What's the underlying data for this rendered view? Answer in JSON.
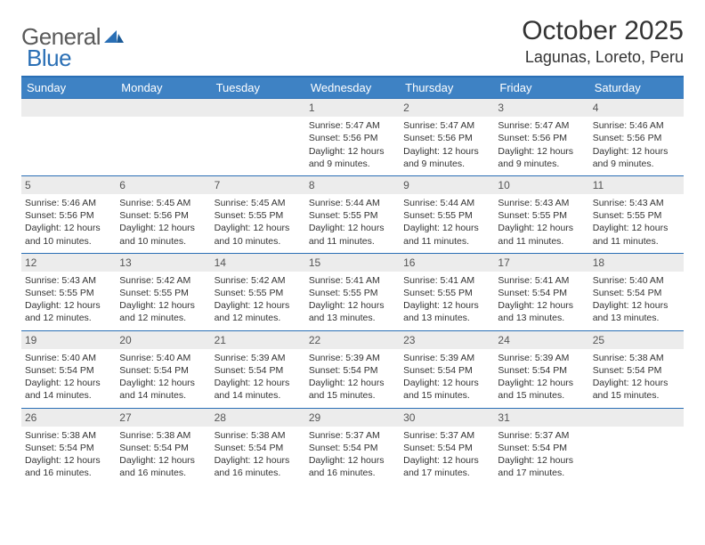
{
  "logo": {
    "text1": "General",
    "text2": "Blue"
  },
  "title": "October 2025",
  "location": "Lagunas, Loreto, Peru",
  "header_bg": "#3e82c4",
  "header_text_color": "#ffffff",
  "border_color": "#2a6fb5",
  "daynum_bg": "#ececec",
  "font_size_body": 10.5,
  "days": [
    "Sunday",
    "Monday",
    "Tuesday",
    "Wednesday",
    "Thursday",
    "Friday",
    "Saturday"
  ],
  "weeks": [
    [
      null,
      null,
      null,
      {
        "n": "1",
        "sr": "5:47 AM",
        "ss": "5:56 PM",
        "dl": "12 hours and 9 minutes."
      },
      {
        "n": "2",
        "sr": "5:47 AM",
        "ss": "5:56 PM",
        "dl": "12 hours and 9 minutes."
      },
      {
        "n": "3",
        "sr": "5:47 AM",
        "ss": "5:56 PM",
        "dl": "12 hours and 9 minutes."
      },
      {
        "n": "4",
        "sr": "5:46 AM",
        "ss": "5:56 PM",
        "dl": "12 hours and 9 minutes."
      }
    ],
    [
      {
        "n": "5",
        "sr": "5:46 AM",
        "ss": "5:56 PM",
        "dl": "12 hours and 10 minutes."
      },
      {
        "n": "6",
        "sr": "5:45 AM",
        "ss": "5:56 PM",
        "dl": "12 hours and 10 minutes."
      },
      {
        "n": "7",
        "sr": "5:45 AM",
        "ss": "5:55 PM",
        "dl": "12 hours and 10 minutes."
      },
      {
        "n": "8",
        "sr": "5:44 AM",
        "ss": "5:55 PM",
        "dl": "12 hours and 11 minutes."
      },
      {
        "n": "9",
        "sr": "5:44 AM",
        "ss": "5:55 PM",
        "dl": "12 hours and 11 minutes."
      },
      {
        "n": "10",
        "sr": "5:43 AM",
        "ss": "5:55 PM",
        "dl": "12 hours and 11 minutes."
      },
      {
        "n": "11",
        "sr": "5:43 AM",
        "ss": "5:55 PM",
        "dl": "12 hours and 11 minutes."
      }
    ],
    [
      {
        "n": "12",
        "sr": "5:43 AM",
        "ss": "5:55 PM",
        "dl": "12 hours and 12 minutes."
      },
      {
        "n": "13",
        "sr": "5:42 AM",
        "ss": "5:55 PM",
        "dl": "12 hours and 12 minutes."
      },
      {
        "n": "14",
        "sr": "5:42 AM",
        "ss": "5:55 PM",
        "dl": "12 hours and 12 minutes."
      },
      {
        "n": "15",
        "sr": "5:41 AM",
        "ss": "5:55 PM",
        "dl": "12 hours and 13 minutes."
      },
      {
        "n": "16",
        "sr": "5:41 AM",
        "ss": "5:55 PM",
        "dl": "12 hours and 13 minutes."
      },
      {
        "n": "17",
        "sr": "5:41 AM",
        "ss": "5:54 PM",
        "dl": "12 hours and 13 minutes."
      },
      {
        "n": "18",
        "sr": "5:40 AM",
        "ss": "5:54 PM",
        "dl": "12 hours and 13 minutes."
      }
    ],
    [
      {
        "n": "19",
        "sr": "5:40 AM",
        "ss": "5:54 PM",
        "dl": "12 hours and 14 minutes."
      },
      {
        "n": "20",
        "sr": "5:40 AM",
        "ss": "5:54 PM",
        "dl": "12 hours and 14 minutes."
      },
      {
        "n": "21",
        "sr": "5:39 AM",
        "ss": "5:54 PM",
        "dl": "12 hours and 14 minutes."
      },
      {
        "n": "22",
        "sr": "5:39 AM",
        "ss": "5:54 PM",
        "dl": "12 hours and 15 minutes."
      },
      {
        "n": "23",
        "sr": "5:39 AM",
        "ss": "5:54 PM",
        "dl": "12 hours and 15 minutes."
      },
      {
        "n": "24",
        "sr": "5:39 AM",
        "ss": "5:54 PM",
        "dl": "12 hours and 15 minutes."
      },
      {
        "n": "25",
        "sr": "5:38 AM",
        "ss": "5:54 PM",
        "dl": "12 hours and 15 minutes."
      }
    ],
    [
      {
        "n": "26",
        "sr": "5:38 AM",
        "ss": "5:54 PM",
        "dl": "12 hours and 16 minutes."
      },
      {
        "n": "27",
        "sr": "5:38 AM",
        "ss": "5:54 PM",
        "dl": "12 hours and 16 minutes."
      },
      {
        "n": "28",
        "sr": "5:38 AM",
        "ss": "5:54 PM",
        "dl": "12 hours and 16 minutes."
      },
      {
        "n": "29",
        "sr": "5:37 AM",
        "ss": "5:54 PM",
        "dl": "12 hours and 16 minutes."
      },
      {
        "n": "30",
        "sr": "5:37 AM",
        "ss": "5:54 PM",
        "dl": "12 hours and 17 minutes."
      },
      {
        "n": "31",
        "sr": "5:37 AM",
        "ss": "5:54 PM",
        "dl": "12 hours and 17 minutes."
      },
      null
    ]
  ],
  "labels": {
    "sunrise": "Sunrise:",
    "sunset": "Sunset:",
    "daylight": "Daylight:"
  }
}
